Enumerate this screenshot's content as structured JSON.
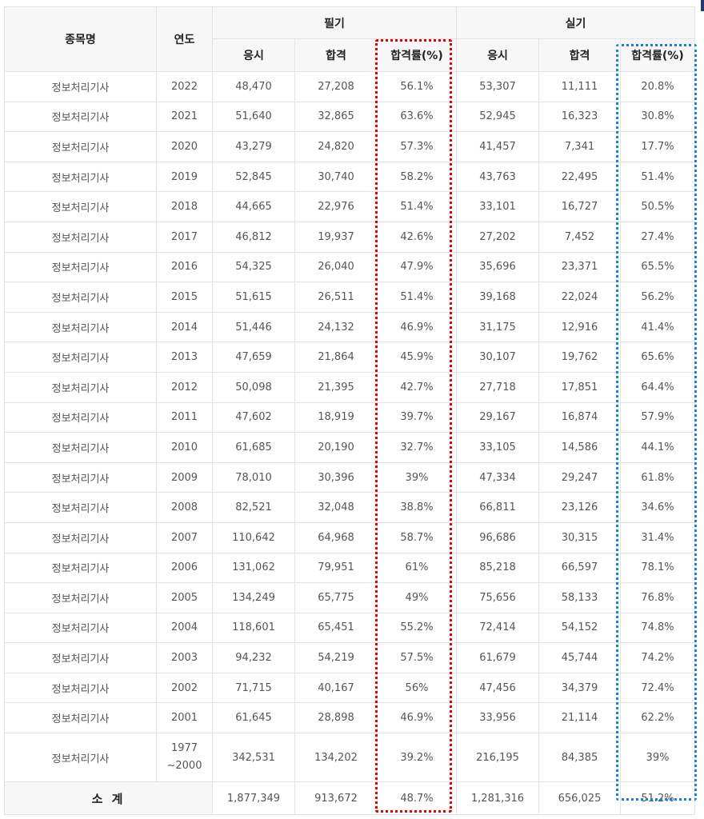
{
  "header": {
    "name": "종목명",
    "year": "연도",
    "written": "필기",
    "practical": "실기",
    "applicants": "응시",
    "passed": "합격",
    "rate": "합격률(%)"
  },
  "rows": [
    {
      "name": "정보처리기사",
      "year": "2022",
      "w_app": "48,470",
      "w_pass": "27,208",
      "w_rate": "56.1%",
      "p_app": "53,307",
      "p_pass": "11,111",
      "p_rate": "20.8%"
    },
    {
      "name": "정보처리기사",
      "year": "2021",
      "w_app": "51,640",
      "w_pass": "32,865",
      "w_rate": "63.6%",
      "p_app": "52,945",
      "p_pass": "16,323",
      "p_rate": "30.8%"
    },
    {
      "name": "정보처리기사",
      "year": "2020",
      "w_app": "43,279",
      "w_pass": "24,820",
      "w_rate": "57.3%",
      "p_app": "41,457",
      "p_pass": "7,341",
      "p_rate": "17.7%"
    },
    {
      "name": "정보처리기사",
      "year": "2019",
      "w_app": "52,845",
      "w_pass": "30,740",
      "w_rate": "58.2%",
      "p_app": "43,763",
      "p_pass": "22,495",
      "p_rate": "51.4%"
    },
    {
      "name": "정보처리기사",
      "year": "2018",
      "w_app": "44,665",
      "w_pass": "22,976",
      "w_rate": "51.4%",
      "p_app": "33,101",
      "p_pass": "16,727",
      "p_rate": "50.5%"
    },
    {
      "name": "정보처리기사",
      "year": "2017",
      "w_app": "46,812",
      "w_pass": "19,937",
      "w_rate": "42.6%",
      "p_app": "27,202",
      "p_pass": "7,452",
      "p_rate": "27.4%"
    },
    {
      "name": "정보처리기사",
      "year": "2016",
      "w_app": "54,325",
      "w_pass": "26,040",
      "w_rate": "47.9%",
      "p_app": "35,696",
      "p_pass": "23,371",
      "p_rate": "65.5%"
    },
    {
      "name": "정보처리기사",
      "year": "2015",
      "w_app": "51,615",
      "w_pass": "26,511",
      "w_rate": "51.4%",
      "p_app": "39,168",
      "p_pass": "22,024",
      "p_rate": "56.2%"
    },
    {
      "name": "정보처리기사",
      "year": "2014",
      "w_app": "51,446",
      "w_pass": "24,132",
      "w_rate": "46.9%",
      "p_app": "31,175",
      "p_pass": "12,916",
      "p_rate": "41.4%"
    },
    {
      "name": "정보처리기사",
      "year": "2013",
      "w_app": "47,659",
      "w_pass": "21,864",
      "w_rate": "45.9%",
      "p_app": "30,107",
      "p_pass": "19,762",
      "p_rate": "65.6%"
    },
    {
      "name": "정보처리기사",
      "year": "2012",
      "w_app": "50,098",
      "w_pass": "21,395",
      "w_rate": "42.7%",
      "p_app": "27,718",
      "p_pass": "17,851",
      "p_rate": "64.4%"
    },
    {
      "name": "정보처리기사",
      "year": "2011",
      "w_app": "47,602",
      "w_pass": "18,919",
      "w_rate": "39.7%",
      "p_app": "29,167",
      "p_pass": "16,874",
      "p_rate": "57.9%"
    },
    {
      "name": "정보처리기사",
      "year": "2010",
      "w_app": "61,685",
      "w_pass": "20,190",
      "w_rate": "32.7%",
      "p_app": "33,105",
      "p_pass": "14,586",
      "p_rate": "44.1%"
    },
    {
      "name": "정보처리기사",
      "year": "2009",
      "w_app": "78,010",
      "w_pass": "30,396",
      "w_rate": "39%",
      "p_app": "47,334",
      "p_pass": "29,247",
      "p_rate": "61.8%"
    },
    {
      "name": "정보처리기사",
      "year": "2008",
      "w_app": "82,521",
      "w_pass": "32,048",
      "w_rate": "38.8%",
      "p_app": "66,811",
      "p_pass": "23,126",
      "p_rate": "34.6%"
    },
    {
      "name": "정보처리기사",
      "year": "2007",
      "w_app": "110,642",
      "w_pass": "64,968",
      "w_rate": "58.7%",
      "p_app": "96,686",
      "p_pass": "30,315",
      "p_rate": "31.4%"
    },
    {
      "name": "정보처리기사",
      "year": "2006",
      "w_app": "131,062",
      "w_pass": "79,951",
      "w_rate": "61%",
      "p_app": "85,218",
      "p_pass": "66,597",
      "p_rate": "78.1%"
    },
    {
      "name": "정보처리기사",
      "year": "2005",
      "w_app": "134,249",
      "w_pass": "65,775",
      "w_rate": "49%",
      "p_app": "75,656",
      "p_pass": "58,133",
      "p_rate": "76.8%"
    },
    {
      "name": "정보처리기사",
      "year": "2004",
      "w_app": "118,601",
      "w_pass": "65,451",
      "w_rate": "55.2%",
      "p_app": "72,414",
      "p_pass": "54,152",
      "p_rate": "74.8%"
    },
    {
      "name": "정보처리기사",
      "year": "2003",
      "w_app": "94,232",
      "w_pass": "54,219",
      "w_rate": "57.5%",
      "p_app": "61,679",
      "p_pass": "45,744",
      "p_rate": "74.2%"
    },
    {
      "name": "정보처리기사",
      "year": "2002",
      "w_app": "71,715",
      "w_pass": "40,167",
      "w_rate": "56%",
      "p_app": "47,456",
      "p_pass": "34,379",
      "p_rate": "72.4%"
    },
    {
      "name": "정보처리기사",
      "year": "2001",
      "w_app": "61,645",
      "w_pass": "28,898",
      "w_rate": "46.9%",
      "p_app": "33,956",
      "p_pass": "21,114",
      "p_rate": "62.2%"
    }
  ],
  "last_row": {
    "name": "정보처리기사",
    "year_line1": "1977",
    "year_line2": "~2000",
    "w_app": "342,531",
    "w_pass": "134,202",
    "w_rate": "39.2%",
    "p_app": "216,195",
    "p_pass": "84,385",
    "p_rate": "39%"
  },
  "total": {
    "label": "소 계",
    "w_app": "1,877,349",
    "w_pass": "913,672",
    "w_rate": "48.7%",
    "p_app": "1,281,316",
    "p_pass": "656,025",
    "p_rate": "51.2%"
  },
  "highlight_colors": {
    "written_rate": "#e30000",
    "practical_rate": "#1a7fe0"
  }
}
